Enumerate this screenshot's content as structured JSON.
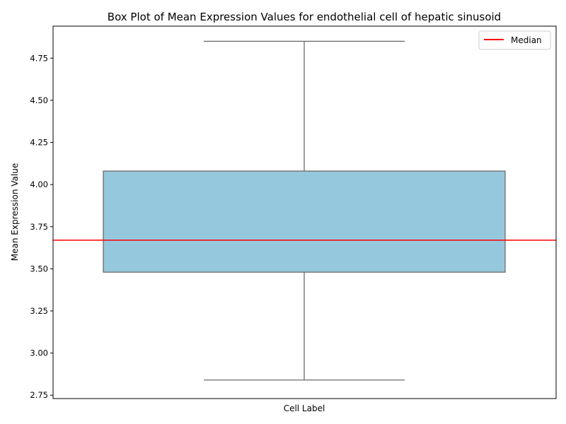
{
  "chart_data": {
    "type": "box",
    "title": "Box Plot of Mean Expression Values for endothelial cell of hepatic sinusoid",
    "xlabel": "Cell Label",
    "ylabel": "Mean Expression Value",
    "ylim": [
      2.73,
      4.94
    ],
    "yticks": [
      2.75,
      3.0,
      3.25,
      3.5,
      3.75,
      4.0,
      4.25,
      4.5,
      4.75
    ],
    "ytick_labels": [
      "2.75",
      "3.00",
      "3.25",
      "3.50",
      "3.75",
      "4.00",
      "4.25",
      "4.50",
      "4.75"
    ],
    "box": {
      "whisker_low": 2.84,
      "q1": 3.48,
      "q3": 4.08,
      "whisker_high": 4.85
    },
    "median_line": {
      "name": "Median",
      "value": 3.67
    },
    "grid": false,
    "legend": {
      "position": "top-right",
      "entries": [
        {
          "label": "Median",
          "color": "#ff0000"
        }
      ]
    },
    "colors": {
      "box_fill": "#95c8dd",
      "box_edge": "#6b6b6b",
      "median": "#ff0000",
      "axes": "#000000"
    }
  }
}
